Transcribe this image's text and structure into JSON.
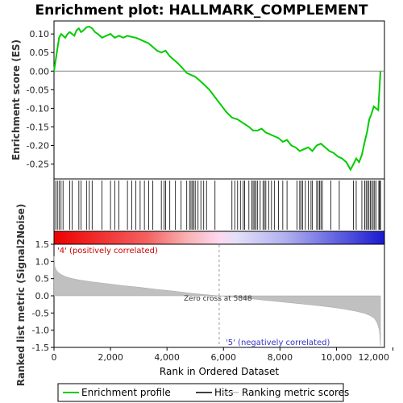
{
  "chart_data": [
    {
      "type": "line",
      "title": "Enrichment plot: HALLMARK_COMPLEMENT",
      "ylabel": "Enrichment score (ES)",
      "ylim": [
        -0.29,
        0.135
      ],
      "xlim": [
        0,
        11700
      ],
      "yticks": [
        "0.10",
        "0.05",
        "0.00",
        "-0.05",
        "-0.10",
        "-0.15",
        "-0.20",
        "-0.25"
      ],
      "grid": false,
      "series": [
        {
          "name": "Enrichment profile",
          "color": "#00cc00",
          "x": [
            0,
            60,
            120,
            180,
            250,
            320,
            400,
            480,
            560,
            640,
            720,
            800,
            880,
            960,
            1050,
            1150,
            1250,
            1350,
            1450,
            1550,
            1700,
            1850,
            2000,
            2150,
            2300,
            2450,
            2600,
            2750,
            2900,
            3050,
            3200,
            3350,
            3500,
            3650,
            3800,
            3950,
            4100,
            4250,
            4400,
            4550,
            4700,
            4850,
            5000,
            5150,
            5300,
            5500,
            5700,
            5900,
            6100,
            6300,
            6500,
            6700,
            6900,
            7050,
            7200,
            7350,
            7500,
            7650,
            7800,
            7950,
            8100,
            8250,
            8400,
            8550,
            8700,
            8850,
            9000,
            9150,
            9300,
            9450,
            9600,
            9750,
            9900,
            10050,
            10200,
            10350,
            10500,
            10600,
            10700,
            10800,
            10900,
            11000,
            11080,
            11160,
            11240,
            11320,
            11400,
            11480,
            11530,
            11560
          ],
          "y": [
            0.0,
            0.03,
            0.06,
            0.09,
            0.1,
            0.095,
            0.09,
            0.1,
            0.105,
            0.1,
            0.095,
            0.11,
            0.115,
            0.105,
            0.11,
            0.118,
            0.12,
            0.115,
            0.105,
            0.1,
            0.09,
            0.095,
            0.1,
            0.09,
            0.095,
            0.09,
            0.095,
            0.092,
            0.09,
            0.085,
            0.08,
            0.075,
            0.065,
            0.055,
            0.05,
            0.055,
            0.04,
            0.03,
            0.02,
            0.008,
            -0.005,
            -0.01,
            -0.015,
            -0.025,
            -0.035,
            -0.05,
            -0.07,
            -0.09,
            -0.11,
            -0.125,
            -0.13,
            -0.14,
            -0.15,
            -0.16,
            -0.16,
            -0.155,
            -0.165,
            -0.17,
            -0.175,
            -0.18,
            -0.19,
            -0.185,
            -0.2,
            -0.205,
            -0.215,
            -0.21,
            -0.205,
            -0.215,
            -0.2,
            -0.195,
            -0.205,
            -0.215,
            -0.22,
            -0.23,
            -0.235,
            -0.245,
            -0.265,
            -0.25,
            -0.235,
            -0.245,
            -0.225,
            -0.19,
            -0.165,
            -0.13,
            -0.115,
            -0.095,
            -0.1,
            -0.105,
            -0.04,
            0.0
          ]
        }
      ]
    },
    {
      "type": "scatter",
      "name": "Hits",
      "hits": [
        60,
        120,
        180,
        250,
        320,
        560,
        640,
        880,
        960,
        1150,
        1250,
        1350,
        1700,
        2000,
        2150,
        2300,
        2600,
        2750,
        2900,
        3050,
        3200,
        3350,
        3500,
        3800,
        3900,
        3950,
        4100,
        4300,
        4500,
        4700,
        4800,
        4850,
        4900,
        4950,
        5000,
        5100,
        5200,
        5300,
        5400,
        5700,
        6300,
        6400,
        6500,
        6600,
        6700,
        6750,
        6900,
        7000,
        7050,
        7100,
        7150,
        7200,
        7300,
        7400,
        7450,
        7500,
        7600,
        7700,
        7800,
        7950,
        8100,
        8250,
        8600,
        8700,
        8750,
        8800,
        8900,
        9000,
        9100,
        9150,
        9300,
        9350,
        9400,
        9450,
        9500,
        9800,
        10100,
        10600,
        10700,
        10900,
        11000,
        11050,
        11100,
        11150,
        11200,
        11250,
        11300,
        11350,
        11400,
        11500,
        11530,
        11560
      ]
    },
    {
      "type": "area",
      "name": "Ranking metric scores",
      "ylabel": "Ranked list metric (Signal2Noise)",
      "xlabel": "Rank in Ordered Dataset",
      "ylim": [
        -1.5,
        1.5
      ],
      "xlim": [
        0,
        11700
      ],
      "yticks": [
        "1.5",
        "1.0",
        "0.5",
        "0.0",
        "-0.5",
        "-1.0",
        "-1.5"
      ],
      "xticks": [
        "0",
        "2,000",
        "4,000",
        "6,000",
        "8,000",
        "10,000",
        "12,000"
      ],
      "x": [
        0,
        30,
        80,
        150,
        250,
        400,
        600,
        900,
        1300,
        1800,
        2400,
        3000,
        3600,
        4200,
        4800,
        5400,
        5848,
        6400,
        7000,
        7600,
        8200,
        8800,
        9400,
        9900,
        10300,
        10700,
        11000,
        11200,
        11350,
        11450,
        11520,
        11560
      ],
      "values": [
        1.15,
        0.85,
        0.75,
        0.68,
        0.62,
        0.56,
        0.51,
        0.46,
        0.41,
        0.36,
        0.3,
        0.25,
        0.19,
        0.14,
        0.08,
        0.03,
        0.0,
        -0.04,
        -0.09,
        -0.14,
        -0.19,
        -0.24,
        -0.29,
        -0.34,
        -0.39,
        -0.45,
        -0.51,
        -0.58,
        -0.66,
        -0.8,
        -1.0,
        -1.45
      ],
      "annotations": {
        "zero_cross": "Zero cross at 5848",
        "pos_label": "'4' (positively correlated)",
        "neg_label": "'5' (negatively correlated)"
      }
    }
  ],
  "zero_cross_rank": 5848,
  "colors": {
    "profile": "#00cc00",
    "hits": "#000000",
    "metric_fill": "#c0c0c0",
    "pos": "#cc0000",
    "neg": "#3333cc"
  },
  "legend": {
    "profile": "Enrichment profile",
    "hits": "Hits",
    "metric": "Ranking metric scores"
  }
}
